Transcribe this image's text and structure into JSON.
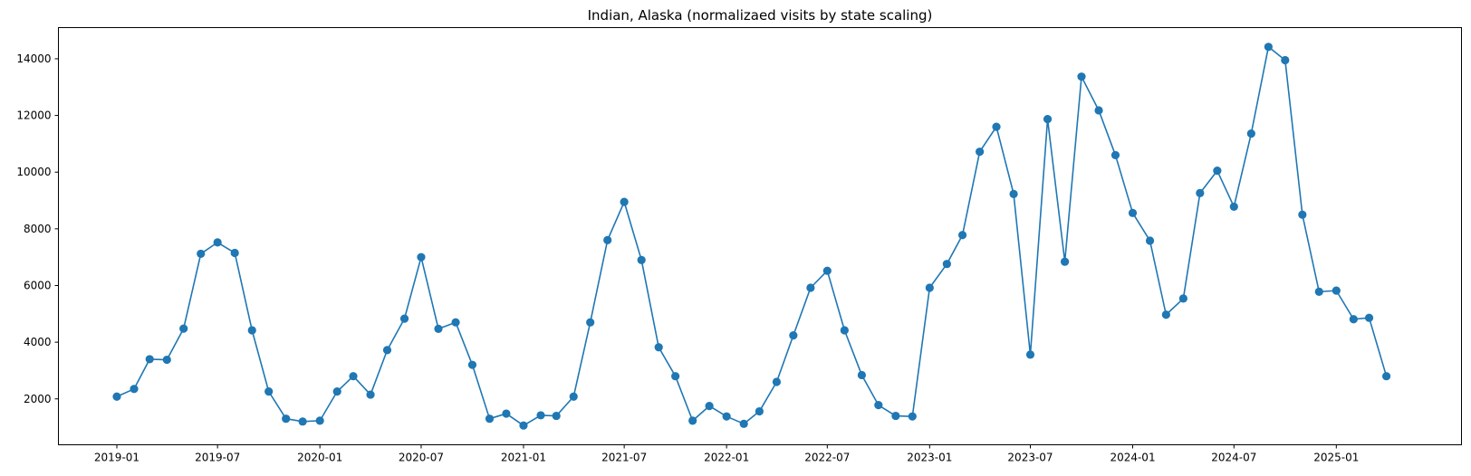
{
  "chart_data": {
    "type": "line",
    "title": "Indian, Alaska (normalizaed visits by state scaling)",
    "xlabel": "",
    "ylabel": "",
    "grid": false,
    "legend": "none",
    "x_range": [
      "2018-09-18",
      "2025-08-14"
    ],
    "ylim": [
      380,
      15100
    ],
    "x_ticks": [
      "2019-01",
      "2019-07",
      "2020-01",
      "2020-07",
      "2021-01",
      "2021-07",
      "2022-01",
      "2022-07",
      "2023-01",
      "2023-07",
      "2024-01",
      "2024-07",
      "2025-01"
    ],
    "y_ticks": [
      2000,
      4000,
      6000,
      8000,
      10000,
      12000,
      14000
    ],
    "series": [
      {
        "color": "#1f77b4",
        "marker": "circle",
        "points": [
          [
            "2019-01",
            2080
          ],
          [
            "2019-02",
            2350
          ],
          [
            "2019-03",
            3400
          ],
          [
            "2019-04",
            3380
          ],
          [
            "2019-05",
            4480
          ],
          [
            "2019-06",
            7120
          ],
          [
            "2019-07",
            7520
          ],
          [
            "2019-08",
            7150
          ],
          [
            "2019-09",
            4420
          ],
          [
            "2019-10",
            2260
          ],
          [
            "2019-11",
            1300
          ],
          [
            "2019-12",
            1200
          ],
          [
            "2020-01",
            1230
          ],
          [
            "2020-02",
            2260
          ],
          [
            "2020-03",
            2800
          ],
          [
            "2020-04",
            2150
          ],
          [
            "2020-05",
            3720
          ],
          [
            "2020-06",
            4830
          ],
          [
            "2020-07",
            7000
          ],
          [
            "2020-08",
            4470
          ],
          [
            "2020-09",
            4700
          ],
          [
            "2020-10",
            3200
          ],
          [
            "2020-11",
            1300
          ],
          [
            "2020-12",
            1480
          ],
          [
            "2021-01",
            1060
          ],
          [
            "2021-02",
            1420
          ],
          [
            "2021-03",
            1400
          ],
          [
            "2021-04",
            2080
          ],
          [
            "2021-05",
            4700
          ],
          [
            "2021-06",
            7600
          ],
          [
            "2021-07",
            8950
          ],
          [
            "2021-08",
            6900
          ],
          [
            "2021-09",
            3820
          ],
          [
            "2021-10",
            2800
          ],
          [
            "2021-11",
            1230
          ],
          [
            "2021-12",
            1750
          ],
          [
            "2022-01",
            1380
          ],
          [
            "2022-02",
            1120
          ],
          [
            "2022-03",
            1560
          ],
          [
            "2022-04",
            2600
          ],
          [
            "2022-05",
            4240
          ],
          [
            "2022-06",
            5920
          ],
          [
            "2022-07",
            6520
          ],
          [
            "2022-08",
            4420
          ],
          [
            "2022-09",
            2840
          ],
          [
            "2022-10",
            1780
          ],
          [
            "2022-11",
            1400
          ],
          [
            "2022-12",
            1380
          ],
          [
            "2023-01",
            5920
          ],
          [
            "2023-02",
            6760
          ],
          [
            "2023-03",
            7780
          ],
          [
            "2023-04",
            10720
          ],
          [
            "2023-05",
            11600
          ],
          [
            "2023-06",
            9230
          ],
          [
            "2023-07",
            3560
          ],
          [
            "2023-08",
            11870
          ],
          [
            "2023-09",
            6840
          ],
          [
            "2023-10",
            13370
          ],
          [
            "2023-11",
            12180
          ],
          [
            "2023-12",
            10600
          ],
          [
            "2024-01",
            8560
          ],
          [
            "2024-02",
            7580
          ],
          [
            "2024-03",
            4970
          ],
          [
            "2024-04",
            5540
          ],
          [
            "2024-05",
            9260
          ],
          [
            "2024-06",
            10050
          ],
          [
            "2024-07",
            8780
          ],
          [
            "2024-08",
            11360
          ],
          [
            "2024-09",
            14420
          ],
          [
            "2024-10",
            13950
          ],
          [
            "2024-11",
            8500
          ],
          [
            "2024-12",
            5780
          ],
          [
            "2025-01",
            5820
          ],
          [
            "2025-02",
            4810
          ],
          [
            "2025-03",
            4860
          ],
          [
            "2025-04",
            2800
          ]
        ]
      }
    ]
  }
}
